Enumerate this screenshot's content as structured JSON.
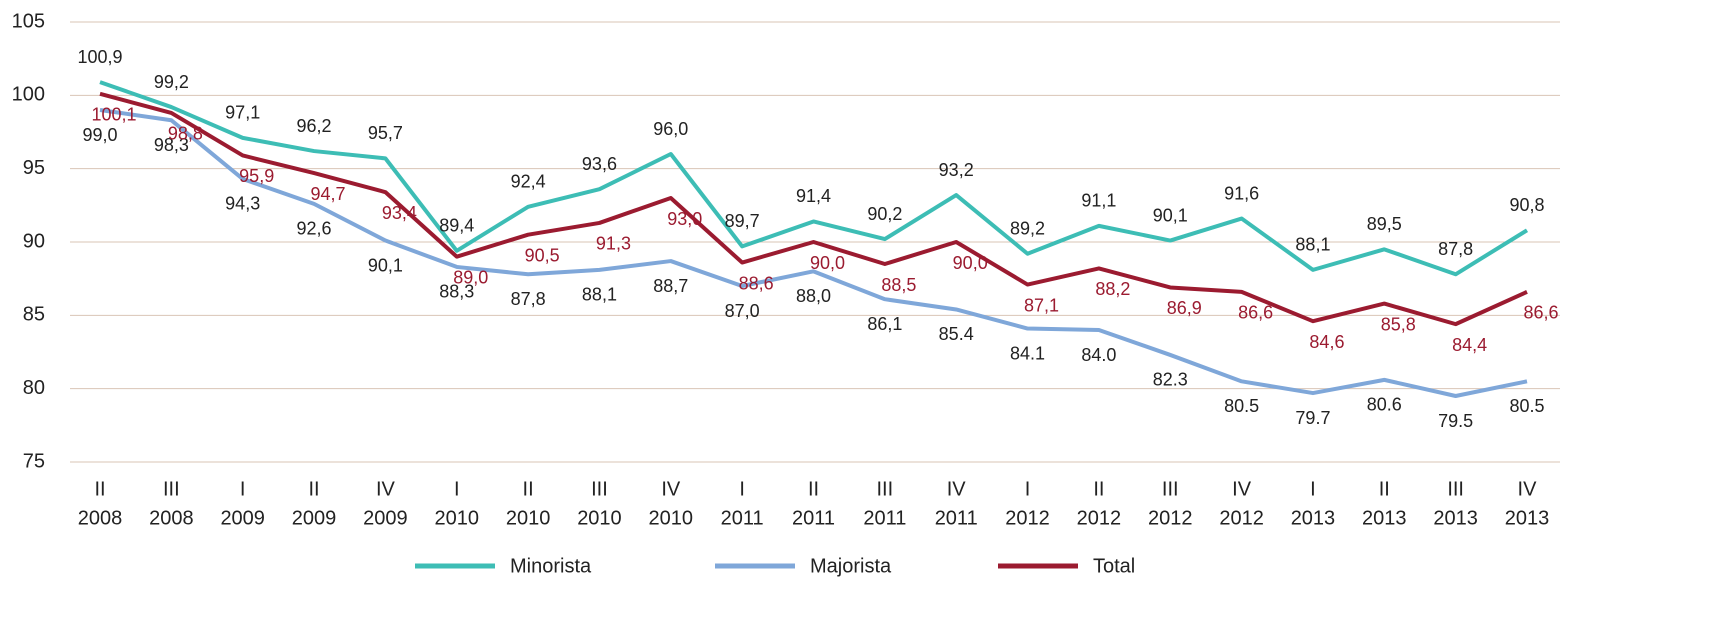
{
  "chart_data": {
    "type": "line",
    "categories": [
      [
        "II",
        "2008"
      ],
      [
        "III",
        "2008"
      ],
      [
        "I",
        "2009"
      ],
      [
        "II",
        "2009"
      ],
      [
        "IV",
        "2009"
      ],
      [
        "I",
        "2010"
      ],
      [
        "II",
        "2010"
      ],
      [
        "III",
        "2010"
      ],
      [
        "IV",
        "2010"
      ],
      [
        "I",
        "2011"
      ],
      [
        "II",
        "2011"
      ],
      [
        "III",
        "2011"
      ],
      [
        "IV",
        "2011"
      ],
      [
        "I",
        "2012"
      ],
      [
        "II",
        "2012"
      ],
      [
        "III",
        "2012"
      ],
      [
        "IV",
        "2012"
      ],
      [
        "I",
        "2013"
      ],
      [
        "II",
        "2013"
      ],
      [
        "III",
        "2013"
      ],
      [
        "IV",
        "2013"
      ]
    ],
    "series": [
      {
        "name": "Minorista",
        "color": "#3dbdb5",
        "values": [
          100.9,
          99.2,
          97.1,
          96.2,
          95.7,
          89.4,
          92.4,
          93.6,
          96.0,
          89.7,
          91.4,
          90.2,
          93.2,
          89.2,
          91.1,
          90.1,
          91.6,
          88.1,
          89.5,
          87.8,
          90.8
        ],
        "value_labels": [
          "100,9",
          "99,2",
          "97,1",
          "96,2",
          "95,7",
          "89,4",
          "92,4",
          "93,6",
          "96,0",
          "89,7",
          "91,4",
          "90,2",
          "93,2",
          "89,2",
          "91,1",
          "90,1",
          "91,6",
          "88,1",
          "89,5",
          "87,8",
          "90,8"
        ]
      },
      {
        "name": "Majorista",
        "color": "#7fa7d9",
        "values": [
          99.0,
          98.3,
          94.3,
          92.6,
          90.1,
          88.3,
          87.8,
          88.1,
          88.7,
          87.0,
          88.0,
          86.1,
          85.4,
          84.1,
          84.0,
          82.3,
          80.5,
          79.7,
          80.6,
          79.5,
          80.5
        ],
        "value_labels": [
          "99,0",
          "98,3",
          "94,3",
          "92,6",
          "90,1",
          "88,3",
          "87,8",
          "88,1",
          "88,7",
          "87,0",
          "88,0",
          "86,1",
          "85.4",
          "84.1",
          "84.0",
          "82.3",
          "80.5",
          "79.7",
          "80.6",
          "79.5",
          "80.5"
        ]
      },
      {
        "name": "Total",
        "color": "#9b1b30",
        "values": [
          100.1,
          98.8,
          95.9,
          94.7,
          93.4,
          89.0,
          90.5,
          91.3,
          93.0,
          88.6,
          90.0,
          88.5,
          90.0,
          87.1,
          88.2,
          86.9,
          86.6,
          84.6,
          85.8,
          84.4,
          86.6
        ],
        "value_labels": [
          "100,1",
          "98,8",
          "95,9",
          "94,7",
          "93,4",
          "89,0",
          "90,5",
          "91,3",
          "93,0",
          "88,6",
          "90,0",
          "88,5",
          "90,0",
          "87,1",
          "88,2",
          "86,9",
          "86,6",
          "84,6",
          "85,8",
          "84,4",
          "86,6"
        ]
      }
    ],
    "ylim": [
      75,
      105
    ],
    "yticks": [
      75,
      80,
      85,
      90,
      95,
      100,
      105
    ],
    "grid": true,
    "legend": "bottom"
  }
}
